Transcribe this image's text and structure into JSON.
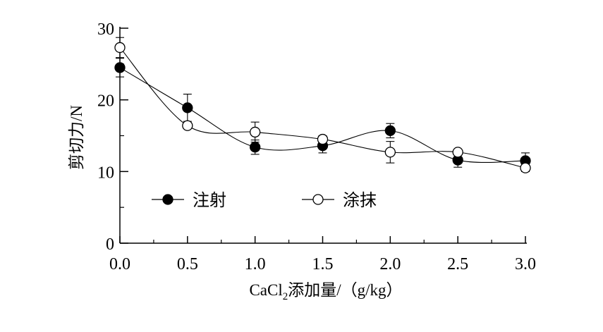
{
  "chart_data": {
    "type": "line",
    "title": "",
    "xlabel_main": "CaCl",
    "xlabel_sub": "2",
    "xlabel_rest": "添加量/（g/kg）",
    "ylabel": "剪切力/N",
    "x": [
      0.0,
      0.5,
      1.0,
      1.5,
      2.0,
      2.5,
      3.0
    ],
    "x_tick_labels": [
      "0.0",
      "0.5",
      "1.0",
      "1.5",
      "2.0",
      "2.5",
      "3.0"
    ],
    "y_ticks": [
      0,
      10,
      20,
      30
    ],
    "y_tick_labels": [
      "0",
      "10",
      "20",
      "30"
    ],
    "xlim": [
      0,
      3.0
    ],
    "ylim": [
      0,
      30
    ],
    "grid": false,
    "legend_position": "inside-lower-left",
    "series": [
      {
        "name": "注射",
        "marker": "filled-circle",
        "values": [
          24.5,
          18.9,
          13.4,
          13.6,
          15.7,
          11.6,
          11.5
        ],
        "errors": [
          1.3,
          1.9,
          1.0,
          1.0,
          1.0,
          1.0,
          1.1
        ]
      },
      {
        "name": "涂抹",
        "marker": "open-circle",
        "values": [
          27.3,
          16.4,
          15.5,
          14.5,
          12.7,
          12.7,
          10.5
        ],
        "errors": [
          1.4,
          0.4,
          1.4,
          0.5,
          1.5,
          0.3,
          0.5
        ]
      }
    ]
  }
}
